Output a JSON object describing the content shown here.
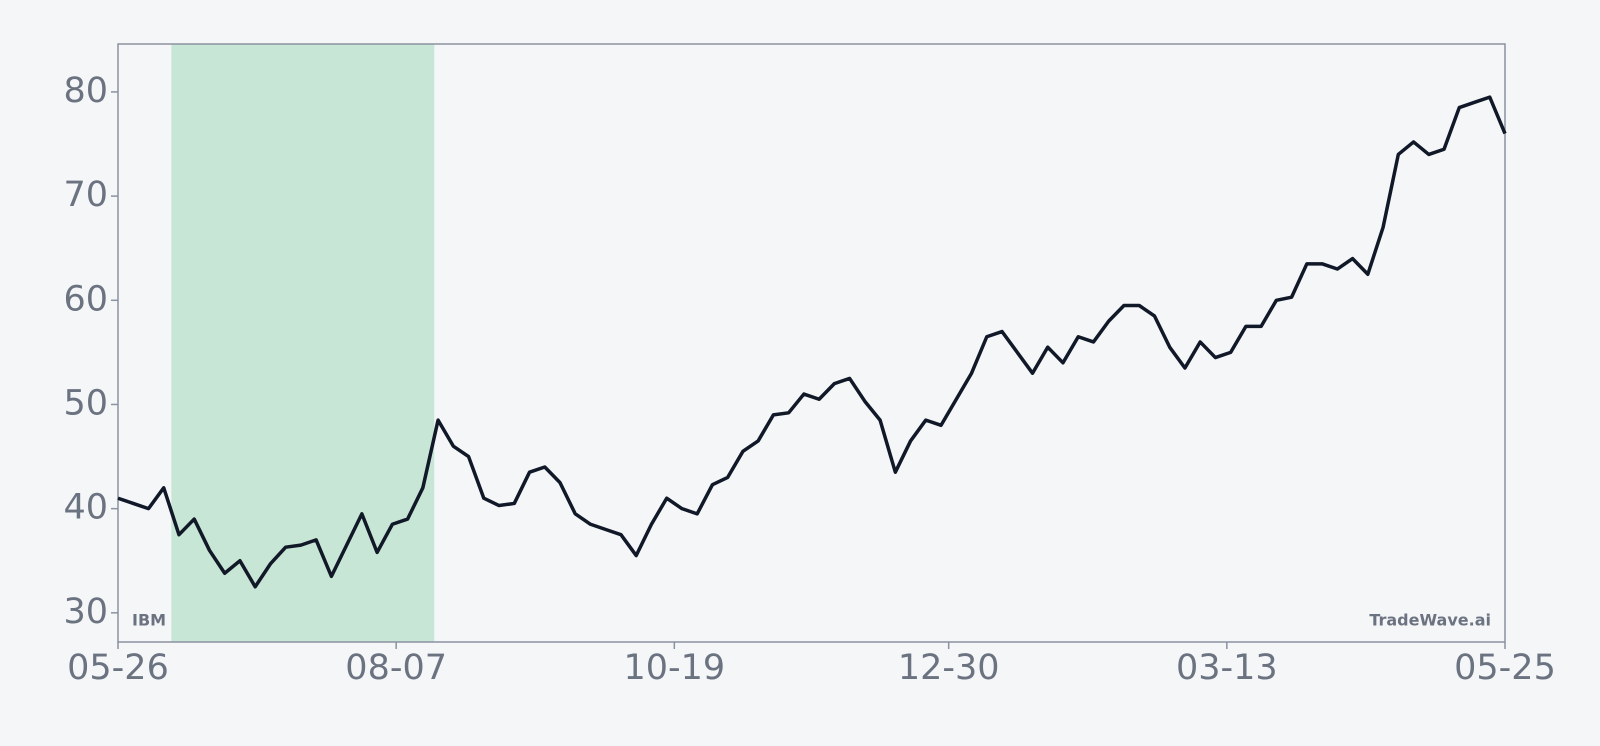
{
  "chart_data": {
    "type": "line",
    "annotations": [
      "IBM",
      "TradeWave.ai"
    ],
    "x": [
      0,
      4,
      8,
      12,
      16,
      20,
      24,
      28,
      32,
      36,
      40,
      44,
      48,
      52,
      56,
      60,
      64,
      68,
      72,
      76,
      80,
      84,
      88,
      92,
      96,
      100,
      104,
      108,
      112,
      116,
      120,
      124,
      128,
      132,
      136,
      140,
      144,
      148,
      152,
      156,
      160,
      164,
      168,
      172,
      176,
      180,
      184,
      188,
      192,
      196,
      200,
      204,
      208,
      212,
      216,
      220,
      224,
      228,
      232,
      236,
      240,
      244,
      248,
      252,
      256,
      260,
      264,
      268,
      272,
      276,
      280,
      284,
      288,
      292,
      296,
      300,
      304,
      308,
      312,
      316,
      320,
      324,
      328,
      332,
      336,
      340,
      344,
      348,
      352,
      356,
      360,
      364
    ],
    "series": [
      {
        "name": "IBM",
        "color": "#111827",
        "values": [
          41,
          40.5,
          40,
          42,
          37.5,
          39,
          36,
          33.8,
          35,
          32.5,
          34.7,
          36.3,
          36.5,
          37,
          33.5,
          36.5,
          39.5,
          35.8,
          38.5,
          39,
          42,
          48.5,
          46,
          45,
          41,
          40.3,
          40.5,
          43.5,
          44,
          42.5,
          39.5,
          38.5,
          38,
          37.5,
          35.5,
          38.5,
          41,
          40,
          39.5,
          42.3,
          43,
          45.5,
          46.5,
          49,
          49.2,
          51,
          50.5,
          52,
          52.5,
          50.3,
          48.5,
          43.5,
          46.5,
          48.5,
          48,
          50.5,
          53,
          56.5,
          57,
          55,
          53,
          55.5,
          54,
          56.5,
          56,
          58,
          59.5,
          59.5,
          58.5,
          55.5,
          53.5,
          56,
          54.5,
          55,
          57.5,
          57.5,
          60,
          60.3,
          63.5,
          63.5,
          63,
          64,
          62.5,
          67,
          74,
          75.2,
          74,
          74.5,
          78.5,
          79,
          79.5,
          76
        ]
      }
    ],
    "highlight": {
      "xlim": [
        14,
        83
      ],
      "color": "#c8e6d5"
    },
    "xlim": [
      0,
      364
    ],
    "xticks": [
      {
        "value": 0,
        "label": "05-26"
      },
      {
        "value": 73,
        "label": "08-07"
      },
      {
        "value": 146,
        "label": "10-19"
      },
      {
        "value": 218,
        "label": "12-30"
      },
      {
        "value": 291,
        "label": "03-13"
      },
      {
        "value": 364,
        "label": "05-25"
      }
    ],
    "ylim": [
      27.2,
      84.6
    ],
    "yticks": [
      30,
      40,
      50,
      60,
      70,
      80
    ]
  }
}
